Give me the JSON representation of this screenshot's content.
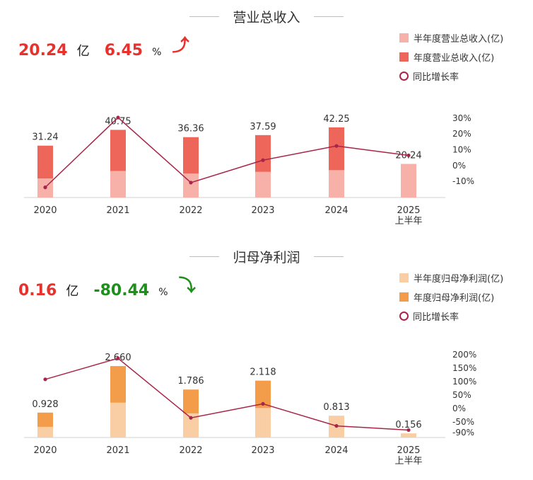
{
  "chart_data": [
    {
      "type": "bar",
      "title": "营业总收入",
      "kpi": {
        "value": "20.24",
        "unit": "亿",
        "change": "6.45",
        "change_unit": "%",
        "direction_icon": "arrow-up-icon",
        "value_color": "#e8312d",
        "change_color": "#e8312d",
        "arrow_color": "#e8312d"
      },
      "legend": [
        "半年度营业总收入(亿)",
        "年度营业总收入(亿)",
        "同比增长率"
      ],
      "colors": {
        "half_year": "#f7b1a9",
        "annual": "#ee655a",
        "growth_line": "#a82448"
      },
      "categories": [
        "2020",
        "2021",
        "2022",
        "2023",
        "2024",
        "2025"
      ],
      "category_sub": [
        "",
        "",
        "",
        "",
        "",
        "上半年"
      ],
      "series": [
        {
          "name": "半年度营业总收入(亿)",
          "values": [
            11.5,
            16.0,
            14.5,
            15.5,
            16.5,
            20.24
          ]
        },
        {
          "name": "年度营业总收入(亿)",
          "values": [
            31.24,
            40.75,
            36.36,
            37.59,
            42.25,
            null
          ]
        },
        {
          "name": "同比增长率",
          "values": [
            -13.8,
            30.4,
            -10.8,
            3.4,
            12.4,
            6.45
          ],
          "unit": "%"
        }
      ],
      "data_labels": [
        "31.24",
        "40.75",
        "36.36",
        "37.59",
        "42.25",
        "20.24"
      ],
      "bar_ylim": [
        0,
        55
      ],
      "right_axis": {
        "ticks": [
          30,
          20,
          10,
          0,
          -10
        ],
        "tick_labels": [
          "30%",
          "20%",
          "10%",
          "0%",
          "-10%"
        ],
        "ylim": [
          -18,
          34
        ]
      }
    },
    {
      "type": "bar",
      "title": "归母净利润",
      "kpi": {
        "value": "0.16",
        "unit": "亿",
        "change": "-80.44",
        "change_unit": "%",
        "direction_icon": "arrow-down-icon",
        "value_color": "#e8312d",
        "change_color": "#1e8f1a",
        "arrow_color": "#1e8f1a"
      },
      "legend": [
        "半年度归母净利润(亿)",
        "年度归母净利润(亿)",
        "同比增长率"
      ],
      "colors": {
        "half_year": "#f9cea4",
        "annual": "#f39c4a",
        "growth_line": "#a82448"
      },
      "categories": [
        "2020",
        "2021",
        "2022",
        "2023",
        "2024",
        "2025"
      ],
      "category_sub": [
        "",
        "",
        "",
        "",
        "",
        "上半年"
      ],
      "series": [
        {
          "name": "半年度归母净利润(亿)",
          "values": [
            0.4,
            1.3,
            0.9,
            1.1,
            0.813,
            0.156
          ]
        },
        {
          "name": "年度归母净利润(亿)",
          "values": [
            0.928,
            2.66,
            1.786,
            2.118,
            null,
            null
          ]
        },
        {
          "name": "同比增长率",
          "values": [
            108,
            186,
            -35,
            17,
            -65,
            -80.44
          ],
          "unit": "%"
        }
      ],
      "data_labels": [
        "0.928",
        "2.660",
        "1.786",
        "2.118",
        "0.813",
        "0.156"
      ],
      "bar_ylim": [
        0,
        3.4
      ],
      "right_axis": {
        "ticks": [
          200,
          150,
          100,
          50,
          0,
          -50,
          -90
        ],
        "tick_labels": [
          "200%",
          "150%",
          "100%",
          "50%",
          "0%",
          "-50%",
          "-90%"
        ],
        "ylim": [
          -95,
          210
        ]
      }
    }
  ]
}
